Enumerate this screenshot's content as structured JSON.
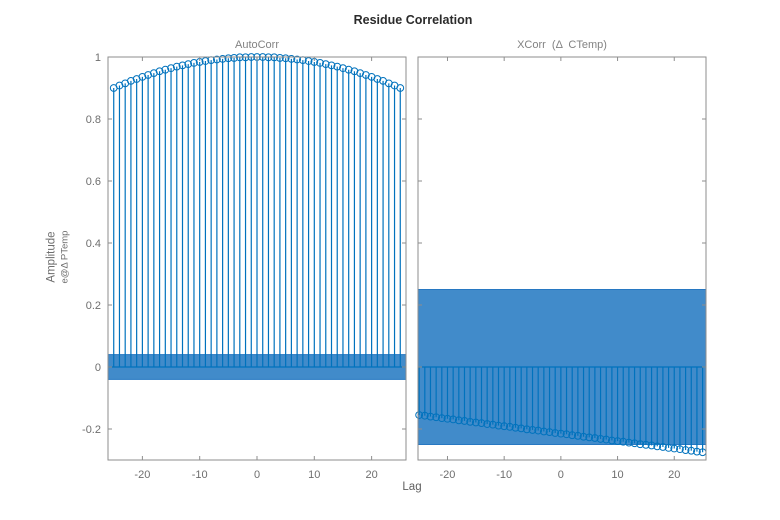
{
  "figure": {
    "title": "Residue Correlation",
    "xlabel": "Lag",
    "ylabel_line1": "Amplitude",
    "ylabel_line2": "e@Δ PTemp"
  },
  "colors": {
    "background": "#FFFFFF",
    "stem": "#0072BD",
    "band_fill": "#418BCA",
    "band_edge": "#2778C2",
    "axis": "#8E8E8E",
    "tick_label": "#6E6E6E",
    "subtitle": "#828282",
    "title": "#2B2B2B"
  },
  "chart_data": [
    {
      "type": "stem",
      "title": "AutoCorr",
      "xlabel": "Lag",
      "ylabel": "Amplitude e@Δ PTemp",
      "xlim": [
        -26,
        26
      ],
      "ylim": [
        -0.3,
        1
      ],
      "xticks": [
        -20,
        -10,
        0,
        10,
        20
      ],
      "yticks": [
        1,
        0.8,
        0.6,
        0.4,
        0.2,
        0,
        -0.2
      ],
      "ytick_labels_visible": true,
      "grid": false,
      "legend": null,
      "confidence_band": [
        -0.04,
        0.04
      ],
      "lags": [
        -25,
        -24,
        -23,
        -22,
        -21,
        -20,
        -19,
        -18,
        -17,
        -16,
        -15,
        -14,
        -13,
        -12,
        -11,
        -10,
        -9,
        -8,
        -7,
        -6,
        -5,
        -4,
        -3,
        -2,
        -1,
        0,
        1,
        2,
        3,
        4,
        5,
        6,
        7,
        8,
        9,
        10,
        11,
        12,
        13,
        14,
        15,
        16,
        17,
        18,
        19,
        20,
        21,
        22,
        23,
        24,
        25
      ],
      "values": [
        0.9,
        0.908,
        0.915,
        0.923,
        0.929,
        0.936,
        0.942,
        0.948,
        0.954,
        0.959,
        0.964,
        0.969,
        0.973,
        0.977,
        0.981,
        0.984,
        0.987,
        0.99,
        0.992,
        0.994,
        0.996,
        0.997,
        0.999,
        0.999,
        1,
        1,
        1,
        0.999,
        0.999,
        0.997,
        0.996,
        0.994,
        0.992,
        0.99,
        0.987,
        0.984,
        0.981,
        0.977,
        0.973,
        0.969,
        0.964,
        0.959,
        0.954,
        0.948,
        0.942,
        0.936,
        0.929,
        0.923,
        0.915,
        0.908,
        0.9
      ]
    },
    {
      "type": "stem",
      "title": "XCorr  (Δ  CTemp)",
      "xlabel": "Lag",
      "ylabel": "",
      "xlim": [
        -25.2,
        25.6
      ],
      "ylim": [
        -0.3,
        1
      ],
      "xticks": [
        -20,
        -10,
        0,
        10,
        20
      ],
      "yticks": [
        1,
        0.8,
        0.6,
        0.4,
        0.2,
        0,
        -0.2
      ],
      "ytick_labels_visible": false,
      "grid": false,
      "legend": null,
      "confidence_band": [
        -0.25,
        0.25
      ],
      "lags": [
        -25,
        -24,
        -23,
        -22,
        -21,
        -20,
        -19,
        -18,
        -17,
        -16,
        -15,
        -14,
        -13,
        -12,
        -11,
        -10,
        -9,
        -8,
        -7,
        -6,
        -5,
        -4,
        -3,
        -2,
        -1,
        0,
        1,
        2,
        3,
        4,
        5,
        6,
        7,
        8,
        9,
        10,
        11,
        12,
        13,
        14,
        15,
        16,
        17,
        18,
        19,
        20,
        21,
        22,
        23,
        24,
        25
      ],
      "values": [
        -0.155,
        -0.157,
        -0.16,
        -0.162,
        -0.165,
        -0.167,
        -0.169,
        -0.172,
        -0.174,
        -0.177,
        -0.179,
        -0.181,
        -0.184,
        -0.186,
        -0.189,
        -0.191,
        -0.193,
        -0.196,
        -0.198,
        -0.201,
        -0.203,
        -0.205,
        -0.208,
        -0.21,
        -0.213,
        -0.215,
        -0.217,
        -0.22,
        -0.222,
        -0.225,
        -0.227,
        -0.229,
        -0.232,
        -0.234,
        -0.237,
        -0.239,
        -0.241,
        -0.244,
        -0.246,
        -0.249,
        -0.251,
        -0.253,
        -0.256,
        -0.258,
        -0.261,
        -0.263,
        -0.265,
        -0.268,
        -0.27,
        -0.273,
        -0.275
      ]
    }
  ]
}
